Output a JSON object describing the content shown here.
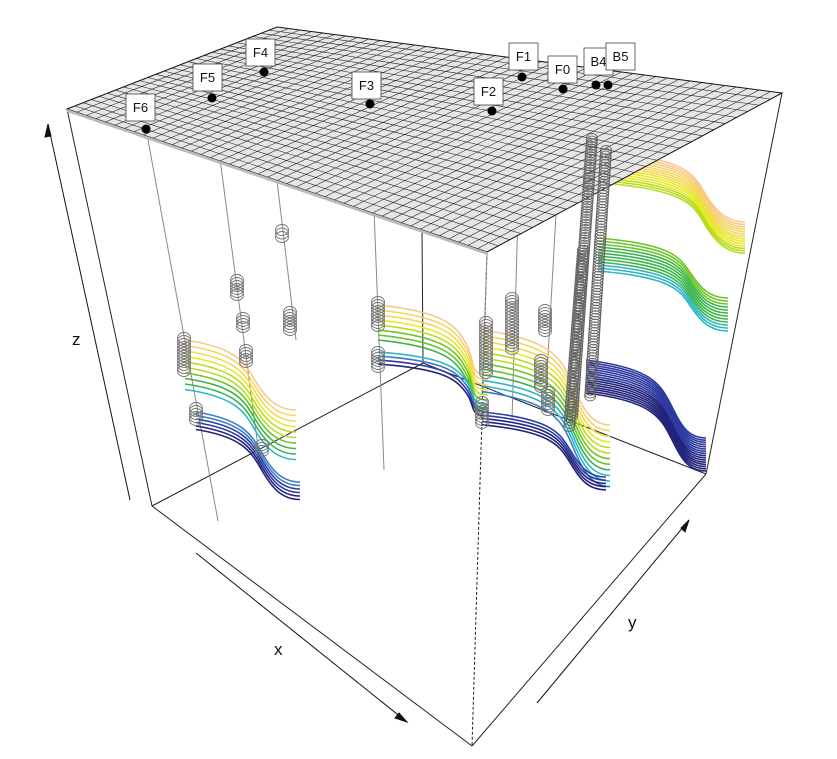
{
  "axes": {
    "x_label": "x",
    "y_label": "y",
    "z_label": "z"
  },
  "wells": [
    {
      "name": "F6"
    },
    {
      "name": "F5"
    },
    {
      "name": "F4"
    },
    {
      "name": "F3"
    },
    {
      "name": "F2"
    },
    {
      "name": "F1"
    },
    {
      "name": "F0"
    },
    {
      "name": "B4"
    },
    {
      "name": "B5"
    }
  ],
  "colors": {
    "surface_fill": "#e8e8e8",
    "surface_grid": "#111111",
    "horizon_palette": [
      "#f8c98a",
      "#f4d65a",
      "#e8e82a",
      "#b8dc22",
      "#6ac42a",
      "#3cb44a",
      "#2eb6c4",
      "#3a7cc8",
      "#2e3aa0",
      "#22247c"
    ],
    "marker_circle": "#777777",
    "well_line": "#888888"
  }
}
